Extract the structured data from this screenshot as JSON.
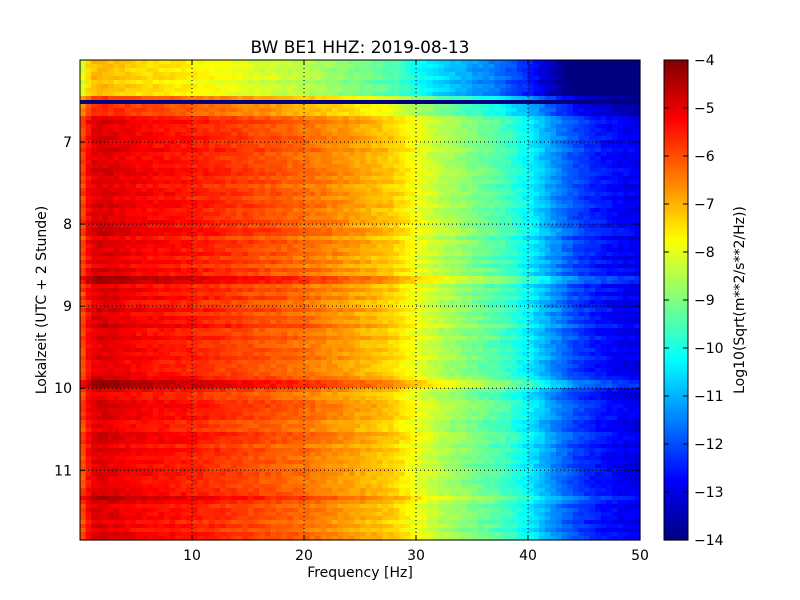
{
  "chart_data": {
    "type": "heatmap",
    "title": "BW BE1 HHZ: 2019-08-13",
    "xlabel": "Frequency [Hz]",
    "ylabel": "Lokalzeit (UTC + 2 Stunde)",
    "xlim": [
      0,
      50
    ],
    "ylim": [
      6.0,
      11.85
    ],
    "y_inverted": true,
    "x_ticks": [
      10,
      20,
      30,
      40,
      50
    ],
    "y_ticks": [
      7,
      8,
      9,
      10,
      11
    ],
    "grid": "dotted",
    "colormap": "jet",
    "colorbar": {
      "label": "Log10(Sqrt(m**2/s**2/Hz))",
      "range": [
        -14,
        -4
      ],
      "ticks": [
        -4,
        -5,
        -6,
        -7,
        -8,
        -9,
        -10,
        -11,
        -12,
        -13,
        -14
      ]
    },
    "spectrum_profile": {
      "frequency": [
        0,
        1,
        2,
        5,
        10,
        15,
        20,
        25,
        28,
        30,
        32,
        35,
        38,
        40,
        42,
        44,
        46,
        48,
        50
      ],
      "log_amplitude": [
        -6.2,
        -5.0,
        -4.9,
        -5.2,
        -5.5,
        -5.9,
        -6.3,
        -6.9,
        -7.3,
        -7.9,
        -8.4,
        -9.0,
        -9.6,
        -10.3,
        -11.2,
        -12.0,
        -12.5,
        -12.8,
        -13.0
      ]
    },
    "row_anomalies": [
      {
        "time": 6.5,
        "description": "data gap",
        "value": -14
      },
      {
        "time": 8.1,
        "offset": 0.4
      },
      {
        "time": 8.67,
        "offset": 0.7
      },
      {
        "time": 9.25,
        "offset": 0.35
      },
      {
        "time": 9.95,
        "offset": 0.6
      },
      {
        "time": 11.33,
        "offset": 0.5
      }
    ]
  }
}
